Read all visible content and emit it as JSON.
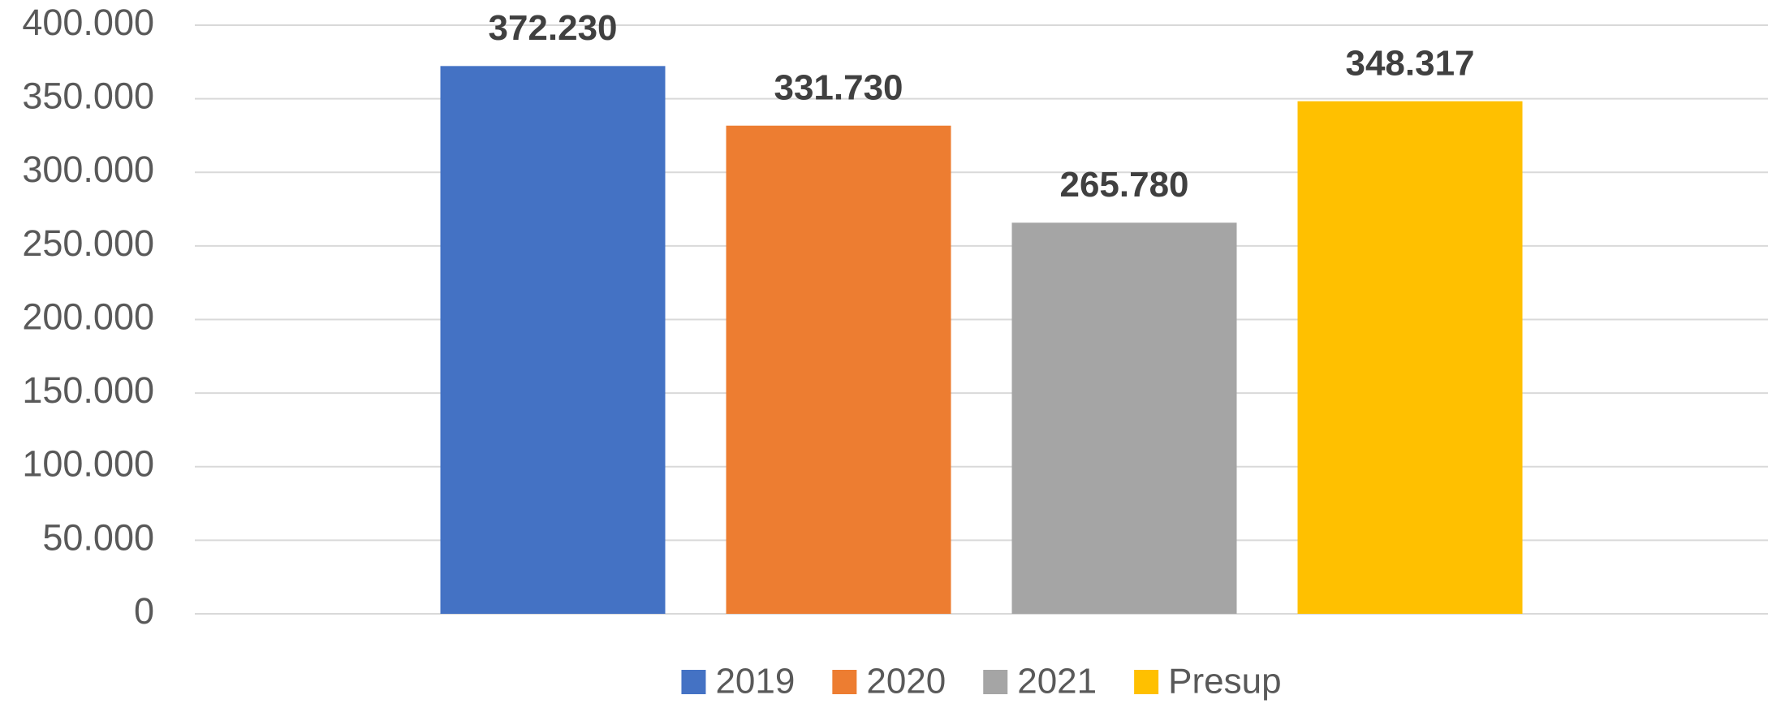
{
  "chart_data": {
    "type": "bar",
    "categories": [
      null
    ],
    "series": [
      {
        "name": "2019",
        "color": "#4472c4",
        "values": [
          372230
        ],
        "value_labels": [
          "372.230"
        ]
      },
      {
        "name": "2020",
        "color": "#ed7d31",
        "values": [
          331730
        ],
        "value_labels": [
          "331.730"
        ]
      },
      {
        "name": "2021",
        "color": "#a5a5a5",
        "values": [
          265780
        ],
        "value_labels": [
          "265.780"
        ]
      },
      {
        "name": "Presup",
        "color": "#ffc000",
        "values": [
          348317
        ],
        "value_labels": [
          "348.317"
        ]
      }
    ],
    "ylim": [
      0,
      400000
    ],
    "yticks": [
      0,
      {
        "value": 50000,
        "label": "50.000"
      },
      {
        "value": 100000,
        "label": "100.000"
      },
      {
        "value": 150000,
        "label": "150.000"
      },
      {
        "value": 200000,
        "label": "200.000"
      },
      {
        "value": 250000,
        "label": "250.000"
      },
      {
        "value": 300000,
        "label": "300.000"
      },
      {
        "value": 350000,
        "label": "350.000"
      },
      {
        "value": 400000,
        "label": "400.000"
      }
    ],
    "grid": true,
    "legend": "bottom"
  }
}
